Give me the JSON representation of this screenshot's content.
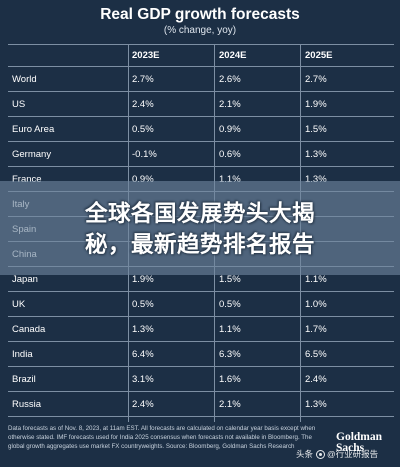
{
  "chart_data": {
    "type": "table",
    "title": "Real GDP growth forecasts",
    "subtitle": "(% change, yoy)",
    "columns": [
      "",
      "2023E",
      "2024E",
      "2025E"
    ],
    "rows": [
      {
        "country": "World",
        "values": [
          "2.7%",
          "2.6%",
          "2.7%"
        ]
      },
      {
        "country": "US",
        "values": [
          "2.4%",
          "2.1%",
          "1.9%"
        ]
      },
      {
        "country": "Euro Area",
        "values": [
          "0.5%",
          "0.9%",
          "1.5%"
        ]
      },
      {
        "country": "Germany",
        "values": [
          "-0.1%",
          "0.6%",
          "1.3%"
        ]
      },
      {
        "country": "France",
        "values": [
          "0.9%",
          "1.1%",
          "1.3%"
        ]
      },
      {
        "country": "Italy",
        "values": [
          "",
          "",
          ""
        ]
      },
      {
        "country": "Spain",
        "values": [
          "",
          "",
          ""
        ]
      },
      {
        "country": "China",
        "values": [
          "",
          "",
          ""
        ]
      },
      {
        "country": "Japan",
        "values": [
          "1.9%",
          "1.5%",
          "1.1%"
        ]
      },
      {
        "country": "UK",
        "values": [
          "0.5%",
          "0.5%",
          "1.0%"
        ]
      },
      {
        "country": "Canada",
        "values": [
          "1.3%",
          "1.1%",
          "1.7%"
        ]
      },
      {
        "country": "India",
        "values": [
          "6.4%",
          "6.3%",
          "6.5%"
        ]
      },
      {
        "country": "Brazil",
        "values": [
          "3.1%",
          "1.6%",
          "2.4%"
        ]
      },
      {
        "country": "Russia",
        "values": [
          "2.4%",
          "2.1%",
          "1.3%"
        ]
      }
    ]
  },
  "banner": {
    "line1": "全球各国发展势头大揭",
    "line2": "秘，最新趋势排名报告"
  },
  "footnote": "Data forecasts as of Nov. 8, 2023, at 11am EST. All forecasts are calculated on calendar year basis except when otherwise stated. IMF forecasts used for India 2025 consensus when forecasts not available in Bloomberg. The global growth aggregates use market FX countryweights. Source: Bloomberg, Goldman Sachs Research",
  "logo": {
    "line1": "Goldman",
    "line2": "Sachs"
  },
  "watermark": {
    "prefix": "头条",
    "suffix": "@行业研报告"
  },
  "colors": {
    "background": "#1c2f45",
    "grid": "#7d8fa3",
    "text": "#ffffff"
  }
}
